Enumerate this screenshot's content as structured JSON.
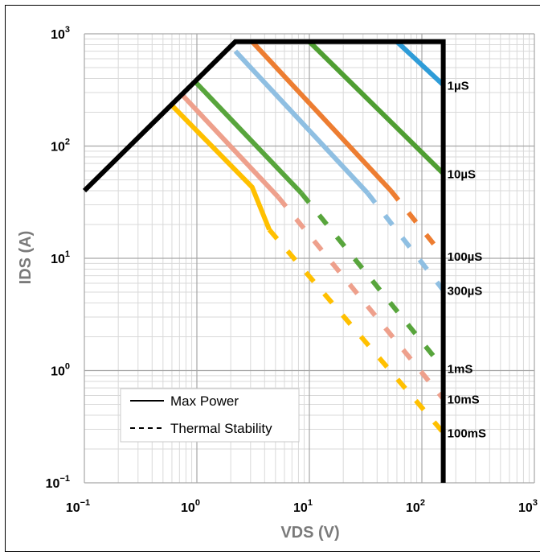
{
  "chart_data": {
    "type": "line",
    "xlabel": "VDS (V)",
    "ylabel": "IDS (A)",
    "xscale": "log",
    "yscale": "log",
    "xlim": [
      0.1,
      1000
    ],
    "ylim": [
      0.1,
      1000
    ],
    "grid": true,
    "legend_placement": "bottom-left",
    "x_ticks": [
      {
        "value": 0.1,
        "base": "10",
        "exp": "−1"
      },
      {
        "value": 1,
        "base": "10",
        "exp": "0"
      },
      {
        "value": 10,
        "base": "10",
        "exp": "1"
      },
      {
        "value": 100,
        "base": "10",
        "exp": "2"
      },
      {
        "value": 1000,
        "base": "10",
        "exp": "3"
      }
    ],
    "y_ticks": [
      {
        "value": 0.1,
        "base": "10",
        "exp": "−1"
      },
      {
        "value": 1,
        "base": "10",
        "exp": "0"
      },
      {
        "value": 10,
        "base": "10",
        "exp": "1"
      },
      {
        "value": 100,
        "base": "10",
        "exp": "2"
      },
      {
        "value": 1000,
        "base": "10",
        "exp": "3"
      }
    ],
    "legend": [
      {
        "label": "Max Power",
        "style": "solid"
      },
      {
        "label": "Thermal Stability",
        "style": "dashed"
      }
    ],
    "boundary": {
      "color": "#000000",
      "points": [
        [
          0.1,
          40
        ],
        [
          2.2,
          850
        ],
        [
          155,
          850
        ],
        [
          155,
          0.1
        ]
      ]
    },
    "series": [
      {
        "label": "1µS",
        "color": "#2e9cd8",
        "solid": [
          [
            60,
            850
          ],
          [
            155,
            350
          ]
        ],
        "dashed": []
      },
      {
        "label": "10µS",
        "color": "#4f9e32",
        "solid": [
          [
            10,
            850
          ],
          [
            155,
            57
          ]
        ],
        "dashed": []
      },
      {
        "label": "100µS",
        "color": "#ed7d31",
        "solid": [
          [
            3.1,
            850
          ],
          [
            53,
            40
          ]
        ],
        "dashed": [
          [
            53,
            40
          ],
          [
            155,
            10.5
          ]
        ]
      },
      {
        "label": "300µS",
        "color": "#8fbfe2",
        "solid": [
          [
            2.2,
            700
          ],
          [
            33,
            38
          ]
        ],
        "dashed": [
          [
            33,
            38
          ],
          [
            155,
            5.2
          ]
        ]
      },
      {
        "label": "1mS",
        "color": "#58a53c",
        "solid": [
          [
            0.95,
            380
          ],
          [
            8.5,
            38
          ]
        ],
        "dashed": [
          [
            8.5,
            38
          ],
          [
            155,
            1.05
          ]
        ]
      },
      {
        "label": "10mS",
        "color": "#eea08c",
        "solid": [
          [
            0.73,
            290
          ],
          [
            5.3,
            35
          ]
        ],
        "dashed": [
          [
            5.3,
            35
          ],
          [
            155,
            0.56
          ]
        ]
      },
      {
        "label": "100mS",
        "color": "#ffc000",
        "solid": [
          [
            0.6,
            230
          ],
          [
            3.1,
            43
          ],
          [
            4.4,
            18
          ]
        ],
        "dashed": [
          [
            4.4,
            18
          ],
          [
            155,
            0.28
          ]
        ]
      }
    ]
  }
}
